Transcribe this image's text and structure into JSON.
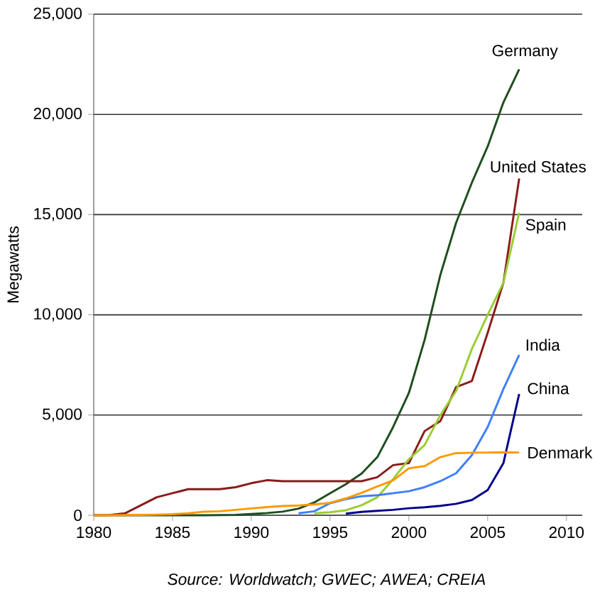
{
  "chart_data": {
    "type": "line",
    "ylabel": "Megawatts",
    "annotations": [
      "Source: *Worldwatch; GWEC; AWEA; CREIA*"
    ],
    "x": [
      1980,
      1981,
      1982,
      1983,
      1984,
      1985,
      1986,
      1987,
      1988,
      1989,
      1990,
      1991,
      1992,
      1993,
      1994,
      1995,
      1996,
      1997,
      1998,
      1999,
      2000,
      2001,
      2002,
      2003,
      2004,
      2005,
      2006,
      2007
    ],
    "xlim": [
      1980,
      2011
    ],
    "xticks": [
      1980,
      1985,
      1990,
      1995,
      2000,
      2005,
      2010
    ],
    "ylim": [
      0,
      25000
    ],
    "yticks": [
      0,
      {
        "value": 5000,
        "label": "5,000"
      },
      {
        "value": 10000,
        "label": "10,000"
      },
      {
        "value": 15000,
        "label": "15,000"
      },
      {
        "value": 20000,
        "label": "20,000"
      },
      {
        "value": 25000,
        "label": "25,000"
      }
    ],
    "grid": "y",
    "legend": false,
    "marker": "none",
    "line_style": "solid",
    "series": [
      {
        "name": "Germany",
        "color": "#1e4d1e",
        "values": [
          0,
          0,
          0,
          0,
          0,
          0,
          0,
          0,
          10,
          20,
          60,
          110,
          180,
          330,
          640,
          1100,
          1550,
          2080,
          2900,
          4400,
          6100,
          8750,
          12000,
          14600,
          16600,
          18400,
          20600,
          22250
        ]
      },
      {
        "name": "United States",
        "color": "#8b1a1a",
        "values": [
          0,
          10,
          100,
          500,
          900,
          1100,
          1300,
          1300,
          1300,
          1400,
          1600,
          1750,
          1700,
          1700,
          1700,
          1700,
          1700,
          1700,
          1900,
          2500,
          2600,
          4200,
          4700,
          6400,
          6700,
          9100,
          11600,
          16800
        ]
      },
      {
        "name": "Spain",
        "color": "#9acd32",
        "values": [
          null,
          null,
          null,
          null,
          null,
          null,
          null,
          null,
          null,
          null,
          null,
          null,
          null,
          null,
          100,
          150,
          250,
          500,
          900,
          1800,
          2800,
          3500,
          5000,
          6200,
          8300,
          10000,
          11600,
          15100
        ]
      },
      {
        "name": "India",
        "color": "#3d7fff",
        "values": [
          null,
          null,
          null,
          null,
          null,
          null,
          null,
          null,
          null,
          null,
          null,
          null,
          null,
          100,
          200,
          600,
          800,
          950,
          1000,
          1100,
          1200,
          1400,
          1700,
          2100,
          3000,
          4400,
          6300,
          8000
        ]
      },
      {
        "name": "China",
        "color": "#00008b",
        "values": [
          null,
          null,
          null,
          null,
          null,
          null,
          null,
          null,
          null,
          null,
          null,
          null,
          null,
          null,
          null,
          null,
          80,
          170,
          220,
          270,
          350,
          400,
          470,
          570,
          760,
          1260,
          2600,
          6050
        ]
      },
      {
        "name": "Denmark",
        "color": "#ff9900",
        "values": [
          0,
          0,
          10,
          20,
          30,
          50,
          100,
          180,
          200,
          270,
          340,
          410,
          460,
          490,
          540,
          620,
          840,
          1120,
          1440,
          1740,
          2340,
          2450,
          2900,
          3100,
          3120,
          3130,
          3140,
          3130
        ]
      }
    ]
  }
}
